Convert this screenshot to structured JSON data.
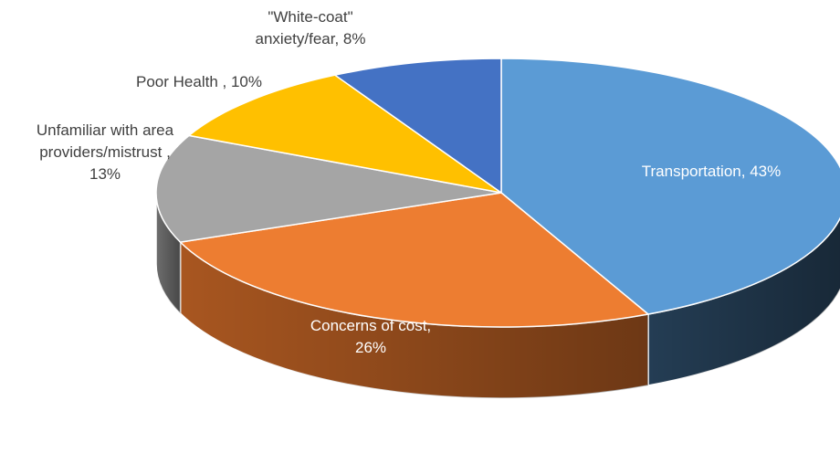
{
  "chart_data": {
    "type": "pie",
    "style": "3d",
    "legend": "none",
    "slices": [
      {
        "label_lines": [
          "Transportation, 43%"
        ],
        "category": "Transportation",
        "value": 43,
        "color": "#5B9BD5",
        "side_color": "#243D54"
      },
      {
        "label_lines": [
          "Concerns of cost,",
          "26%"
        ],
        "category": "Concerns of cost",
        "value": 26,
        "color": "#ED7D31",
        "side_color": "#A85620"
      },
      {
        "label_lines": [
          "Unfamiliar with area",
          "providers/mistrust   ,",
          "13%"
        ],
        "category": "Unfamiliar with area providers/mistrust",
        "value": 13,
        "color": "#A5A5A5",
        "side_color": "#6E6E6E"
      },
      {
        "label_lines": [
          "Poor Health   , 10%"
        ],
        "category": "Poor Health",
        "value": 10,
        "color": "#FFC000",
        "side_color": "#B08600"
      },
      {
        "label_lines": [
          "\"White-coat\"",
          "anxiety/fear, 8%"
        ],
        "category": "\"White-coat\" anxiety/fear",
        "value": 8,
        "color": "#4472C4",
        "side_color": "#2E4F88"
      }
    ]
  }
}
